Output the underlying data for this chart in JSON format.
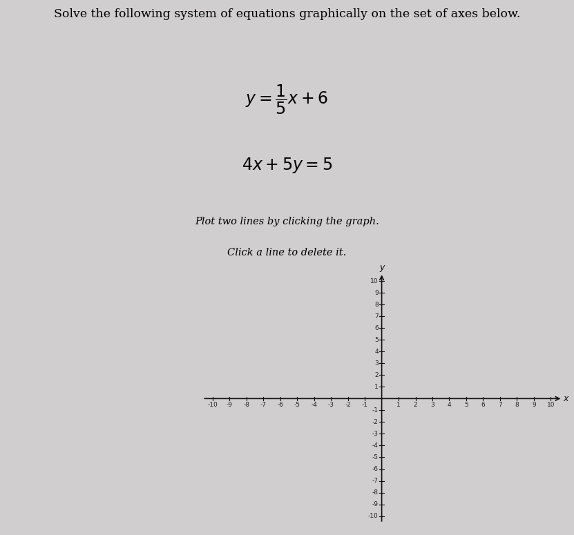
{
  "title_line1": "Solve the following system of equations graphically on the set of axes below.",
  "eq1_latex": "$y = \\dfrac{1}{5}x + 6$",
  "eq2_latex": "$4x + 5y = 5$",
  "instruction1": "Plot two lines by clicking the graph.",
  "instruction2": "Click a line to delete it.",
  "x_label": "x",
  "y_label": "y",
  "xlim": [
    -10,
    10
  ],
  "ylim": [
    -10,
    10
  ],
  "background_color": "#d0cece",
  "page_background": "#c8c8c8",
  "axis_color": "#111111",
  "tick_label_color": "#222222",
  "tick_fontsize": 6.5,
  "title_fontsize": 12.5,
  "eq_fontsize": 17,
  "instr_fontsize": 10.5
}
